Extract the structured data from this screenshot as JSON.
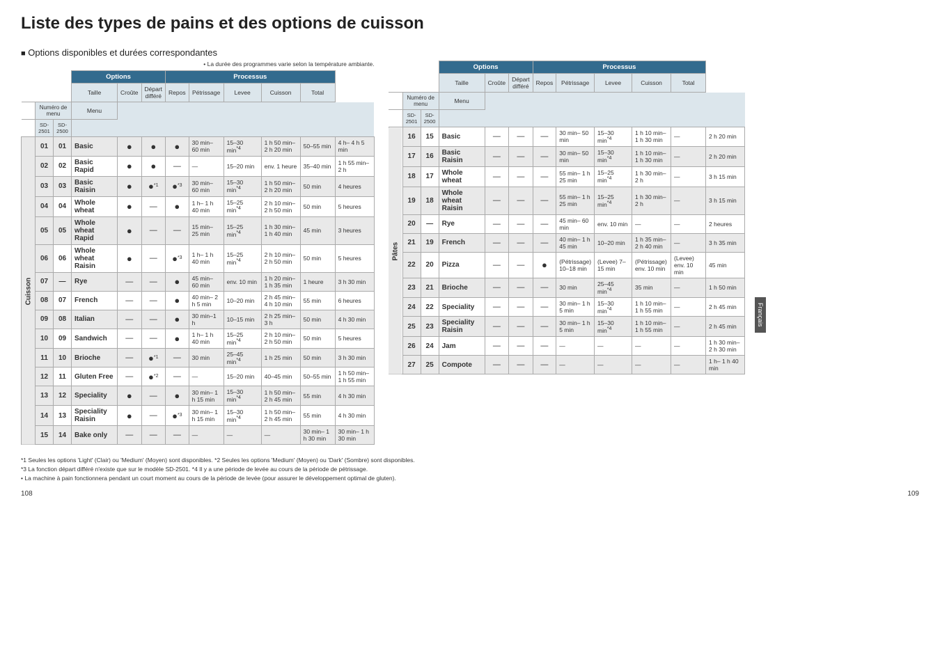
{
  "title": "Liste des types de pains et des options de cuisson",
  "subtitle_prefix": "■",
  "subtitle": "Options disponibles et durées correspondantes",
  "note": "• La durée des programmes varie selon la température ambiante.",
  "headers": {
    "options": "Options",
    "processus": "Processus",
    "numero": "Numéro de menu",
    "sd2501": "SD-2501",
    "sd2500": "SD-2500",
    "menu": "Menu",
    "taille": "Taille",
    "croute": "Croûte",
    "depart": "Départ différé",
    "repos": "Repos",
    "petrissage": "Pétrissage",
    "levee": "Levee",
    "cuisson": "Cuisson",
    "total": "Total"
  },
  "vert1": "Cuisson",
  "vert2": "Pâtes",
  "side_tab": "Français",
  "table1": [
    {
      "n1": "01",
      "n2": "01",
      "menu": "Basic",
      "t": "●",
      "c": "●",
      "d": "●",
      "repos": "30 min– 60 min",
      "petr": "15–30 min*4",
      "levee": "1 h 50 min– 2 h 20 min",
      "cuisson": "50–55 min",
      "total": "4 h– 4 h 5 min",
      "shade": true
    },
    {
      "n1": "02",
      "n2": "02",
      "menu": "Basic Rapid",
      "t": "●",
      "c": "●",
      "d": "—",
      "repos": "—",
      "petr": "15–20 min",
      "levee": "env. 1 heure",
      "cuisson": "35–40 min",
      "total": "1 h 55 min– 2 h"
    },
    {
      "n1": "03",
      "n2": "03",
      "menu": "Basic Raisin",
      "t": "●",
      "c": "●*1",
      "d": "●*3",
      "repos": "30 min– 60 min",
      "petr": "15–30 min*4",
      "levee": "1 h 50 min– 2 h 20 min",
      "cuisson": "50 min",
      "total": "4 heures",
      "shade": true
    },
    {
      "n1": "04",
      "n2": "04",
      "menu": "Whole wheat",
      "t": "●",
      "c": "—",
      "d": "●",
      "repos": "1 h– 1 h 40 min",
      "petr": "15–25 min*4",
      "levee": "2 h 10 min– 2 h 50 min",
      "cuisson": "50 min",
      "total": "5 heures"
    },
    {
      "n1": "05",
      "n2": "05",
      "menu": "Whole wheat Rapid",
      "t": "●",
      "c": "—",
      "d": "—",
      "repos": "15 min– 25 min",
      "petr": "15–25 min*4",
      "levee": "1 h 30 min– 1 h 40 min",
      "cuisson": "45 min",
      "total": "3 heures",
      "shade": true
    },
    {
      "n1": "06",
      "n2": "06",
      "menu": "Whole wheat Raisin",
      "t": "●",
      "c": "—",
      "d": "●*3",
      "repos": "1 h– 1 h 40 min",
      "petr": "15–25 min*4",
      "levee": "2 h 10 min– 2 h 50 min",
      "cuisson": "50 min",
      "total": "5 heures"
    },
    {
      "n1": "07",
      "n2": "—",
      "menu": "Rye",
      "t": "—",
      "c": "—",
      "d": "●",
      "repos": "45 min– 60 min",
      "petr": "env. 10 min",
      "levee": "1 h 20 min– 1 h 35 min",
      "cuisson": "1 heure",
      "total": "3 h 30 min",
      "shade": true
    },
    {
      "n1": "08",
      "n2": "07",
      "menu": "French",
      "t": "—",
      "c": "—",
      "d": "●",
      "repos": "40 min– 2 h 5 min",
      "petr": "10–20 min",
      "levee": "2 h 45 min– 4 h 10 min",
      "cuisson": "55 min",
      "total": "6 heures"
    },
    {
      "n1": "09",
      "n2": "08",
      "menu": "Italian",
      "t": "—",
      "c": "—",
      "d": "●",
      "repos": "30 min–1 h",
      "petr": "10–15 min",
      "levee": "2 h 25 min– 3 h",
      "cuisson": "50 min",
      "total": "4 h 30 min",
      "shade": true
    },
    {
      "n1": "10",
      "n2": "09",
      "menu": "Sandwich",
      "t": "—",
      "c": "—",
      "d": "●",
      "repos": "1 h– 1 h 40 min",
      "petr": "15–25 min*4",
      "levee": "2 h 10 min– 2 h 50 min",
      "cuisson": "50 min",
      "total": "5 heures"
    },
    {
      "n1": "11",
      "n2": "10",
      "menu": "Brioche",
      "t": "—",
      "c": "●*1",
      "d": "—",
      "repos": "30 min",
      "petr": "25–45 min*4",
      "levee": "1 h 25 min",
      "cuisson": "50 min",
      "total": "3 h 30 min",
      "shade": true
    },
    {
      "n1": "12",
      "n2": "11",
      "menu": "Gluten Free",
      "t": "—",
      "c": "●*2",
      "d": "—",
      "repos": "—",
      "petr": "15–20 min",
      "levee": "40–45 min",
      "cuisson": "50–55 min",
      "total": "1 h 50 min– 1 h 55 min"
    },
    {
      "n1": "13",
      "n2": "12",
      "menu": "Speciality",
      "t": "●",
      "c": "—",
      "d": "●",
      "repos": "30 min– 1 h 15 min",
      "petr": "15–30 min*4",
      "levee": "1 h 50 min– 2 h 45 min",
      "cuisson": "55 min",
      "total": "4 h 30 min",
      "shade": true
    },
    {
      "n1": "14",
      "n2": "13",
      "menu": "Speciality Raisin",
      "t": "●",
      "c": "—",
      "d": "●*3",
      "repos": "30 min– 1 h 15 min",
      "petr": "15–30 min*4",
      "levee": "1 h 50 min– 2 h 45 min",
      "cuisson": "55 min",
      "total": "4 h 30 min"
    },
    {
      "n1": "15",
      "n2": "14",
      "menu": "Bake only",
      "t": "—",
      "c": "—",
      "d": "—",
      "repos": "—",
      "petr": "—",
      "levee": "—",
      "cuisson": "30 min– 1 h 30 min",
      "total": "30 min– 1 h 30 min",
      "shade": true
    }
  ],
  "table2": [
    {
      "n1": "16",
      "n2": "15",
      "menu": "Basic",
      "t": "—",
      "c": "—",
      "d": "—",
      "repos": "30 min– 50 min",
      "petr": "15–30 min*4",
      "levee": "1 h 10 min– 1 h 30 min",
      "cuisson": "—",
      "total": "2 h 20 min"
    },
    {
      "n1": "17",
      "n2": "16",
      "menu": "Basic Raisin",
      "t": "—",
      "c": "—",
      "d": "—",
      "repos": "30 min– 50 min",
      "petr": "15–30 min*4",
      "levee": "1 h 10 min– 1 h 30 min",
      "cuisson": "—",
      "total": "2 h 20 min",
      "shade": true
    },
    {
      "n1": "18",
      "n2": "17",
      "menu": "Whole wheat",
      "t": "—",
      "c": "—",
      "d": "—",
      "repos": "55 min– 1 h 25 min",
      "petr": "15–25 min*4",
      "levee": "1 h 30 min– 2 h",
      "cuisson": "—",
      "total": "3 h 15 min"
    },
    {
      "n1": "19",
      "n2": "18",
      "menu": "Whole wheat Raisin",
      "t": "—",
      "c": "—",
      "d": "—",
      "repos": "55 min– 1 h 25 min",
      "petr": "15–25 min*4",
      "levee": "1 h 30 min– 2 h",
      "cuisson": "—",
      "total": "3 h 15 min",
      "shade": true
    },
    {
      "n1": "20",
      "n2": "—",
      "menu": "Rye",
      "t": "—",
      "c": "—",
      "d": "—",
      "repos": "45 min– 60 min",
      "petr": "env. 10 min",
      "levee": "—",
      "cuisson": "—",
      "total": "2 heures"
    },
    {
      "n1": "21",
      "n2": "19",
      "menu": "French",
      "t": "—",
      "c": "—",
      "d": "—",
      "repos": "40 min– 1 h 45 min",
      "petr": "10–20 min",
      "levee": "1 h 35 min– 2 h 40 min",
      "cuisson": "—",
      "total": "3 h 35 min",
      "shade": true
    },
    {
      "n1": "22",
      "n2": "20",
      "menu": "Pizza",
      "t": "—",
      "c": "—",
      "d": "●",
      "repos": "(Pétrissage) 10–18 min",
      "petr": "(Levee) 7–15 min",
      "levee": "(Pétrissage) env. 10 min",
      "cuisson": "(Levee) env. 10 min",
      "total": "45 min"
    },
    {
      "n1": "23",
      "n2": "21",
      "menu": "Brioche",
      "t": "—",
      "c": "—",
      "d": "—",
      "repos": "30 min",
      "petr": "25–45 min*4",
      "levee": "35 min",
      "cuisson": "—",
      "total": "1 h 50 min",
      "shade": true
    },
    {
      "n1": "24",
      "n2": "22",
      "menu": "Speciality",
      "t": "—",
      "c": "—",
      "d": "—",
      "repos": "30 min– 1 h 5 min",
      "petr": "15–30 min*4",
      "levee": "1 h 10 min– 1 h 55 min",
      "cuisson": "—",
      "total": "2 h 45 min"
    },
    {
      "n1": "25",
      "n2": "23",
      "menu": "Speciality Raisin",
      "t": "—",
      "c": "—",
      "d": "—",
      "repos": "30 min– 1 h 5 min",
      "petr": "15–30 min*4",
      "levee": "1 h 10 min– 1 h 55 min",
      "cuisson": "—",
      "total": "2 h 45 min",
      "shade": true
    },
    {
      "n1": "26",
      "n2": "24",
      "menu": "Jam",
      "t": "—",
      "c": "—",
      "d": "—",
      "repos": "—",
      "petr": "—",
      "levee": "—",
      "cuisson": "—",
      "total": "1 h 30 min– 2 h 30 min"
    },
    {
      "n1": "27",
      "n2": "25",
      "menu": "Compote",
      "t": "—",
      "c": "—",
      "d": "—",
      "repos": "—",
      "petr": "—",
      "levee": "—",
      "cuisson": "—",
      "total": "1 h– 1 h 40 min",
      "shade": true
    }
  ],
  "footnotes": [
    "*1 Seules les options 'Light' (Clair) ou 'Medium' (Moyen) sont disponibles.   *2 Seules les options 'Medium' (Moyen) ou 'Dark' (Sombre) sont disponibles.",
    "*3 La fonction départ différé n'existe que sur le modèle SD-2501.   *4 Il y a une période de levée au cours de la période de pétrissage.",
    "• La machine à pain fonctionnera pendant un court moment au cours de la période de levée (pour assurer le développement optimal de gluten)."
  ],
  "page_left": "108",
  "page_right": "109"
}
